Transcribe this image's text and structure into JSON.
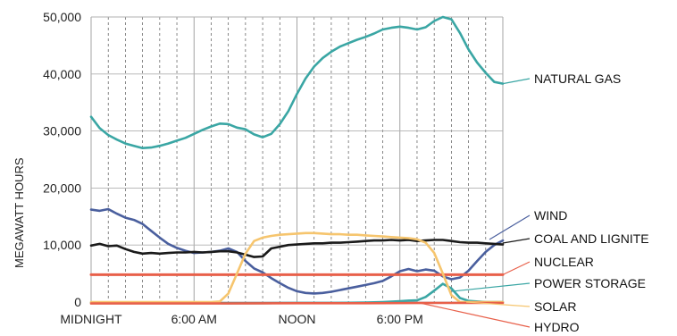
{
  "chart_data": {
    "type": "line",
    "title": "",
    "xlabel": "",
    "ylabel": "MEGAWATT HOURS",
    "ylim": [
      0,
      50000
    ],
    "xlim": [
      0,
      24
    ],
    "grid": true,
    "x_ticks": [
      {
        "value": 0,
        "label": "MIDNIGHT"
      },
      {
        "value": 6,
        "label": "6:00 AM"
      },
      {
        "value": 12,
        "label": "NOON"
      },
      {
        "value": 18,
        "label": "6:00 PM"
      }
    ],
    "y_ticks": [
      {
        "value": 0,
        "label": "0"
      },
      {
        "value": 10000,
        "label": "10,000"
      },
      {
        "value": 20000,
        "label": "20,000"
      },
      {
        "value": 30000,
        "label": "30,000"
      },
      {
        "value": 40000,
        "label": "40,000"
      },
      {
        "value": 50000,
        "label": "50,000"
      }
    ],
    "series": [
      {
        "name": "NATURAL GAS",
        "color": "#3aa6a4",
        "x": [
          0,
          0.5,
          1,
          1.5,
          2,
          2.5,
          3,
          3.5,
          4,
          4.5,
          5,
          5.5,
          6,
          6.5,
          7,
          7.5,
          8,
          8.5,
          9,
          9.5,
          10,
          10.5,
          11,
          11.5,
          12,
          12.5,
          13,
          13.5,
          14,
          14.5,
          15,
          15.5,
          16,
          16.5,
          17,
          17.5,
          18,
          18.5,
          19,
          19.5,
          20,
          20.5,
          21,
          21.5,
          22,
          22.5,
          23,
          23.5,
          24
        ],
        "y": [
          32500,
          30500,
          29300,
          28500,
          27800,
          27400,
          27000,
          27100,
          27400,
          27800,
          28300,
          28800,
          29500,
          30200,
          30800,
          31300,
          31200,
          30600,
          30300,
          29400,
          28900,
          29500,
          31200,
          33500,
          36500,
          39200,
          41300,
          42800,
          43900,
          44800,
          45400,
          46000,
          46500,
          47100,
          47800,
          48100,
          48300,
          48100,
          47800,
          48200,
          49300,
          50000,
          49600,
          47200,
          44300,
          42000,
          40200,
          38600,
          38300
        ]
      },
      {
        "name": "WIND",
        "color": "#4a5f9e",
        "x": [
          0,
          0.5,
          1,
          1.5,
          2,
          2.5,
          3,
          3.5,
          4,
          4.5,
          5,
          5.5,
          6,
          6.5,
          7,
          7.5,
          8,
          8.5,
          9,
          9.5,
          10,
          10.5,
          11,
          11.5,
          12,
          12.5,
          13,
          13.5,
          14,
          14.5,
          15,
          15.5,
          16,
          16.5,
          17,
          17.5,
          18,
          18.5,
          19,
          19.5,
          20,
          20.5,
          21,
          21.5,
          22,
          22.5,
          23,
          23.5,
          24
        ],
        "y": [
          16200,
          16000,
          16300,
          15500,
          14800,
          14400,
          13700,
          12500,
          11300,
          10200,
          9500,
          9000,
          8600,
          8700,
          8800,
          9000,
          9400,
          8800,
          7200,
          5900,
          5200,
          4200,
          3300,
          2500,
          1900,
          1600,
          1500,
          1600,
          1800,
          2100,
          2400,
          2700,
          3000,
          3300,
          3700,
          4500,
          5400,
          5800,
          5400,
          5700,
          5500,
          4500,
          4000,
          4300,
          5500,
          7200,
          8800,
          10000,
          10800
        ]
      },
      {
        "name": "COAL AND LIGNITE",
        "color": "#1a1a1a",
        "x": [
          0,
          0.5,
          1,
          1.5,
          2,
          2.5,
          3,
          3.5,
          4,
          4.5,
          5,
          5.5,
          6,
          6.5,
          7,
          7.5,
          8,
          8.5,
          9,
          9.5,
          10,
          10.5,
          11,
          11.5,
          12,
          12.5,
          13,
          13.5,
          14,
          14.5,
          15,
          15.5,
          16,
          16.5,
          17,
          17.5,
          18,
          18.5,
          19,
          19.5,
          20,
          20.5,
          21,
          21.5,
          22,
          22.5,
          23,
          23.5,
          24
        ],
        "y": [
          9900,
          10200,
          9800,
          9900,
          9300,
          8800,
          8500,
          8600,
          8500,
          8600,
          8700,
          8700,
          8800,
          8700,
          8800,
          8900,
          8900,
          8700,
          8300,
          7900,
          8000,
          9400,
          9700,
          10000,
          10100,
          10200,
          10300,
          10300,
          10400,
          10400,
          10500,
          10600,
          10700,
          10800,
          10800,
          10900,
          10800,
          10900,
          10700,
          10800,
          10900,
          10900,
          10700,
          10500,
          10400,
          10400,
          10300,
          10200,
          10100
        ]
      },
      {
        "name": "NUCLEAR",
        "color": "#e8604a",
        "x": [
          0,
          24
        ],
        "y": [
          4800,
          4800
        ]
      },
      {
        "name": "POWER STORAGE",
        "color": "#3aa6a4",
        "x": [
          0,
          2,
          4,
          6,
          8,
          10,
          12,
          14,
          16,
          17,
          18,
          18.5,
          19,
          19.5,
          20,
          20.5,
          21,
          21.5,
          22,
          23,
          24
        ],
        "y": [
          -100,
          -100,
          -150,
          -150,
          -200,
          -200,
          -150,
          -150,
          -100,
          0,
          150,
          250,
          300,
          900,
          2000,
          3200,
          2400,
          700,
          200,
          0,
          0
        ]
      },
      {
        "name": "SOLAR",
        "color": "#f6c56e",
        "x": [
          0,
          2,
          4,
          6,
          7,
          7.5,
          8,
          8.5,
          9,
          9.5,
          10,
          10.5,
          11,
          11.5,
          12,
          12.5,
          13,
          13.5,
          14,
          14.5,
          15,
          15.5,
          16,
          16.5,
          17,
          17.5,
          18,
          18.5,
          19,
          19.5,
          20,
          20.5,
          21,
          21.5,
          22,
          23,
          24
        ],
        "y": [
          0,
          0,
          0,
          0,
          0,
          100,
          1500,
          5000,
          8500,
          10700,
          11300,
          11600,
          11800,
          11900,
          12000,
          12100,
          12100,
          12000,
          11900,
          11900,
          11800,
          11800,
          11700,
          11600,
          11500,
          11400,
          11300,
          11200,
          11000,
          10400,
          8600,
          5000,
          1200,
          0,
          0,
          0,
          0
        ]
      },
      {
        "name": "HYDRO",
        "color": "#e8604a",
        "x": [
          0,
          4,
          8,
          12,
          16,
          20,
          24
        ],
        "y": [
          -250,
          -250,
          -250,
          -200,
          -200,
          -150,
          -150
        ]
      }
    ],
    "legend_labels": [
      {
        "series": "NATURAL GAS",
        "text": "NATURAL GAS"
      },
      {
        "series": "WIND",
        "text": "WIND"
      },
      {
        "series": "COAL AND LIGNITE",
        "text": "COAL AND LIGNITE"
      },
      {
        "series": "NUCLEAR",
        "text": "NUCLEAR"
      },
      {
        "series": "POWER STORAGE",
        "text": "POWER STORAGE"
      },
      {
        "series": "SOLAR",
        "text": "SOLAR"
      },
      {
        "series": "HYDRO",
        "text": "HYDRO"
      }
    ]
  }
}
